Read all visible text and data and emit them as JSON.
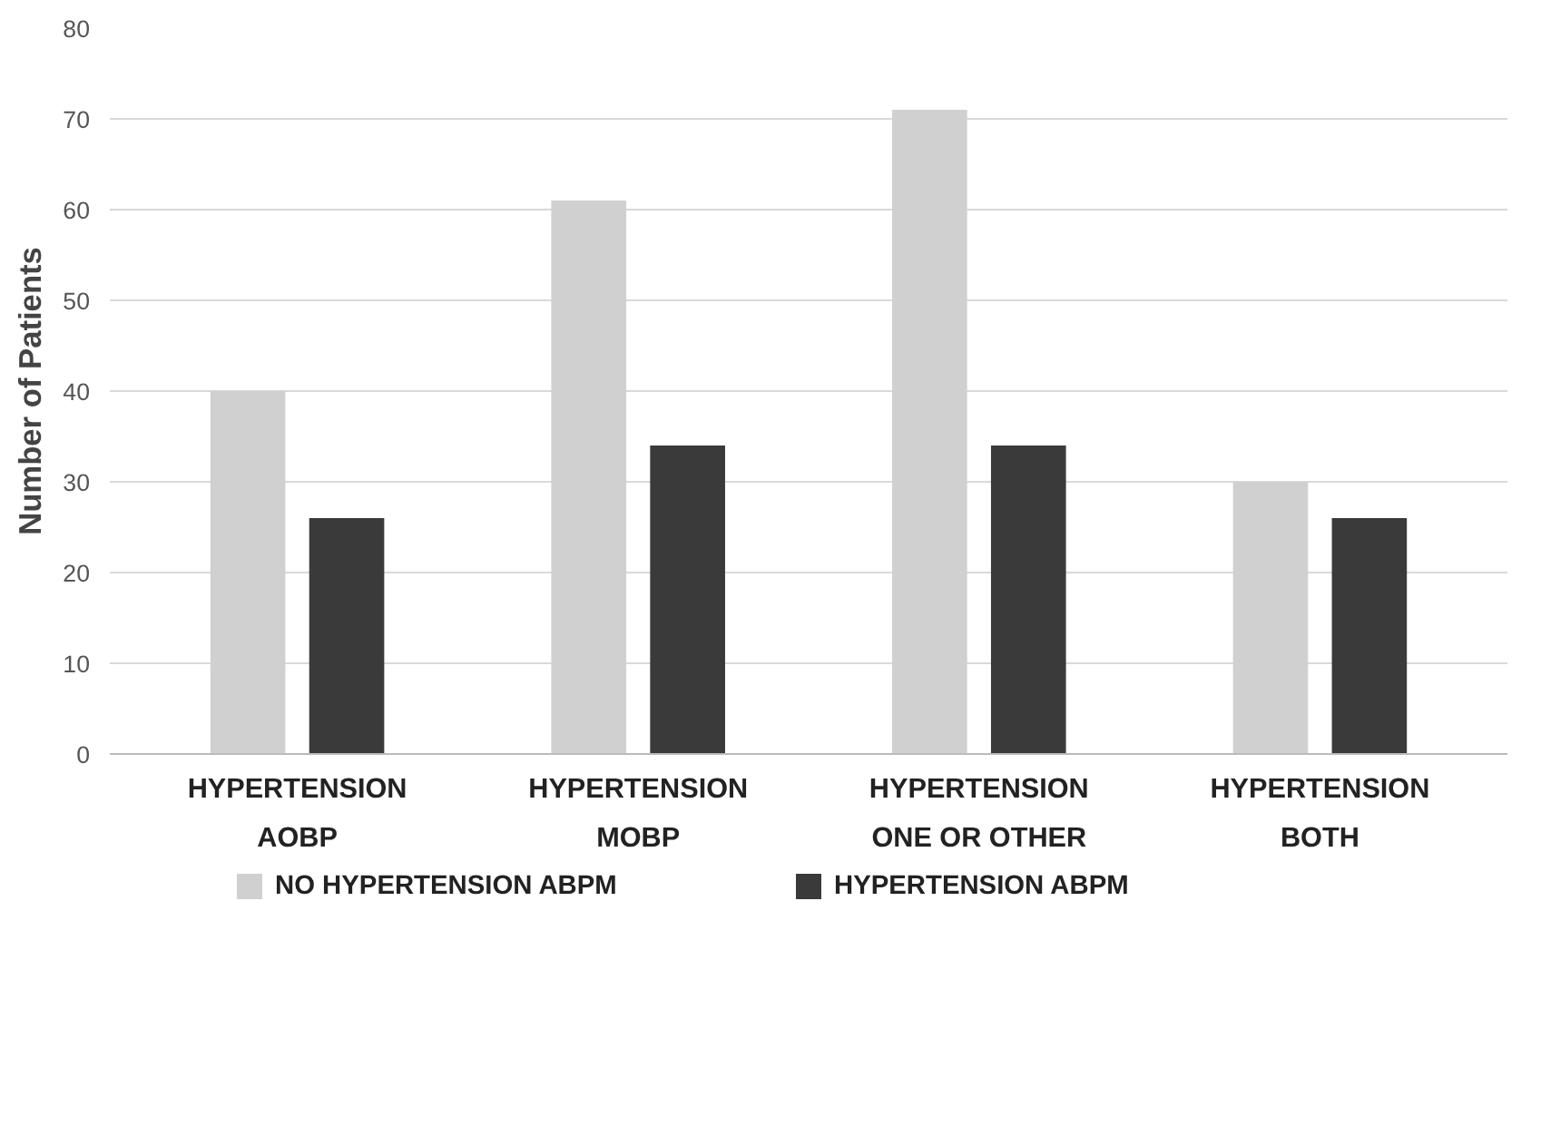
{
  "chart_data": {
    "type": "bar",
    "ylabel": "Number of Patients",
    "categories": [
      "HYPERTENSION\nAOBP",
      "HYPERTENSION\nMOBP",
      "HYPERTENSION\nONE OR OTHER",
      "HYPERTENSION\nBOTH"
    ],
    "series": [
      {
        "name": "NO HYPERTENSION ABPM",
        "color": "#d0d0d0",
        "values": [
          40,
          61,
          71,
          30
        ]
      },
      {
        "name": "HYPERTENSION ABPM",
        "color": "#3a3a3a",
        "values": [
          26,
          34,
          34,
          26
        ]
      }
    ],
    "ylim": [
      0,
      80
    ],
    "yticks": [
      0,
      10,
      20,
      30,
      40,
      50,
      60,
      70,
      80
    ],
    "grid": "y",
    "legend": "bottom"
  }
}
